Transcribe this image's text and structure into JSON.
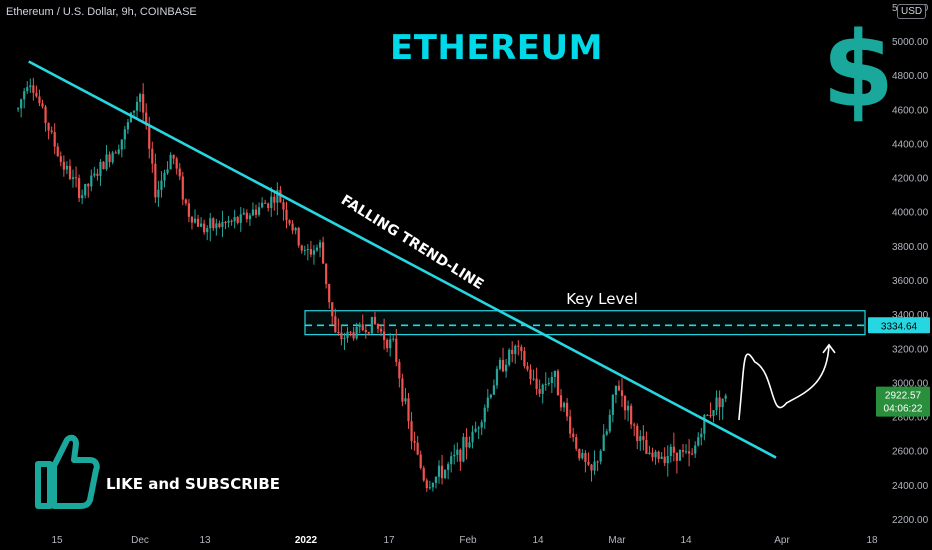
{
  "header": {
    "symbol": "Ethereum / U.S. Dollar, 9h, COINBASE",
    "currency_button": "USD"
  },
  "banner": {
    "title": "ETHEREUM",
    "currency_symbol": "$"
  },
  "cta": {
    "text": "LIKE and SUBSCRIBE"
  },
  "colors": {
    "background": "#000000",
    "trendline": "#26d7e2",
    "title": "#00d9e8",
    "up_candle": "#26a69a",
    "down_candle": "#ef5350",
    "dollar_icon": "#1aa89c",
    "key_level": "#26d7e2",
    "last_price_badge": "#2a8f3c"
  },
  "chart_data": {
    "type": "candlestick",
    "timeframe": "9h",
    "x_axis_ticks": [
      "15",
      "Dec",
      "13",
      "2022",
      "17",
      "Feb",
      "14",
      "Mar",
      "14",
      "Apr",
      "18"
    ],
    "y_axis_ticks": [
      2200,
      2400,
      2600,
      2800,
      3000,
      3200,
      3400,
      3600,
      3800,
      4000,
      4200,
      4400,
      4600,
      4800,
      5000,
      5200
    ],
    "y_axis_tick_labels": [
      "2200.00",
      "2400.00",
      "2600.00",
      "2800.00",
      "3000.00",
      "3200.00",
      "3400.00",
      "3600.00",
      "3800.00",
      "4000.00",
      "4200.00",
      "4400.00",
      "4600.00",
      "4800.00",
      "5000.00",
      "5200.00"
    ],
    "ylim": [
      2200,
      5230
    ],
    "price_path_keypoints": [
      {
        "date": "2021-11-08",
        "price": 4600
      },
      {
        "date": "2021-11-10",
        "price": 4800
      },
      {
        "date": "2021-11-16",
        "price": 4300
      },
      {
        "date": "2021-11-20",
        "price": 4100
      },
      {
        "date": "2021-11-28",
        "price": 4450
      },
      {
        "date": "2021-12-01",
        "price": 4700
      },
      {
        "date": "2021-12-04",
        "price": 4100
      },
      {
        "date": "2021-12-07",
        "price": 4350
      },
      {
        "date": "2021-12-10",
        "price": 4000
      },
      {
        "date": "2021-12-13",
        "price": 3900
      },
      {
        "date": "2021-12-20",
        "price": 3950
      },
      {
        "date": "2021-12-27",
        "price": 4100
      },
      {
        "date": "2022-01-01",
        "price": 3750
      },
      {
        "date": "2022-01-04",
        "price": 3800
      },
      {
        "date": "2022-01-07",
        "price": 3250
      },
      {
        "date": "2022-01-11",
        "price": 3300
      },
      {
        "date": "2022-01-14",
        "price": 3350
      },
      {
        "date": "2022-01-18",
        "price": 3200
      },
      {
        "date": "2022-01-21",
        "price": 2700
      },
      {
        "date": "2022-01-24",
        "price": 2400
      },
      {
        "date": "2022-01-28",
        "price": 2500
      },
      {
        "date": "2022-02-02",
        "price": 2700
      },
      {
        "date": "2022-02-07",
        "price": 3100
      },
      {
        "date": "2022-02-10",
        "price": 3200
      },
      {
        "date": "2022-02-14",
        "price": 2950
      },
      {
        "date": "2022-02-17",
        "price": 3050
      },
      {
        "date": "2022-02-21",
        "price": 2650
      },
      {
        "date": "2022-02-24",
        "price": 2450
      },
      {
        "date": "2022-02-27",
        "price": 2700
      },
      {
        "date": "2022-03-01",
        "price": 3000
      },
      {
        "date": "2022-03-04",
        "price": 2750
      },
      {
        "date": "2022-03-07",
        "price": 2550
      },
      {
        "date": "2022-03-12",
        "price": 2600
      },
      {
        "date": "2022-03-15",
        "price": 2550
      },
      {
        "date": "2022-03-17",
        "price": 2750
      },
      {
        "date": "2022-03-20",
        "price": 2900
      },
      {
        "date": "2022-03-22",
        "price": 2920
      }
    ],
    "current_price": "2922.57",
    "countdown": "04:06:22",
    "key_level_value": "3334.64",
    "key_level_zone": [
      3280,
      3420
    ],
    "trendline": {
      "start": {
        "date": "2021-11-10",
        "price": 4880
      },
      "end": {
        "date": "2022-03-31",
        "price": 2560
      }
    },
    "annotations": {
      "trendline_label": "FALLING TREND-LINE",
      "key_level_label": "Key Level"
    },
    "projection_path": [
      {
        "date": "2022-03-24",
        "price": 2780
      },
      {
        "date": "2022-03-27",
        "price": 3120
      },
      {
        "date": "2022-04-02",
        "price": 2880
      },
      {
        "date": "2022-04-10",
        "price": 3220
      }
    ]
  }
}
